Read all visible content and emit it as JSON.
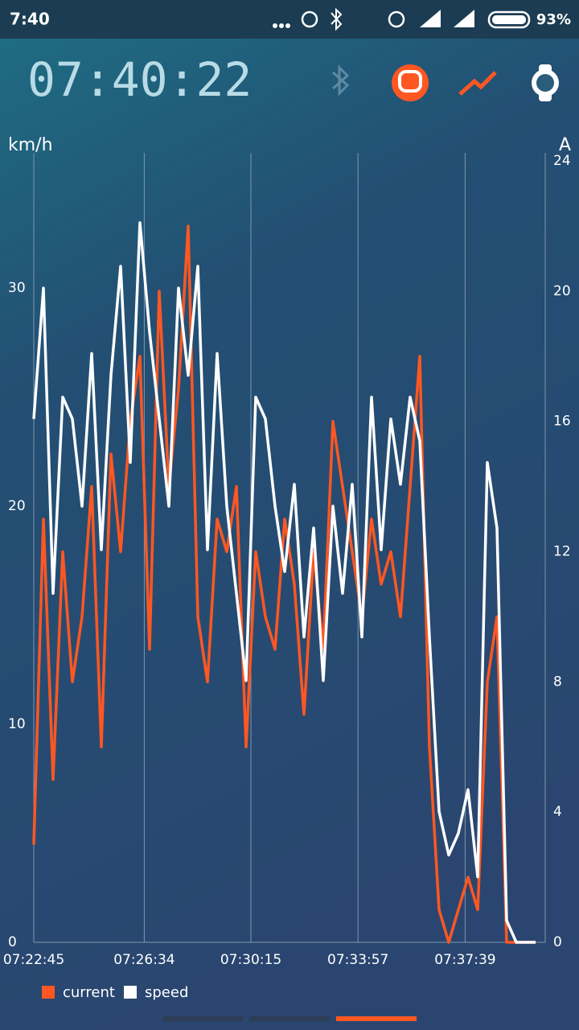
{
  "status_bar": {
    "time": "7:40",
    "battery": "93%"
  },
  "header": {
    "clock": "07:40:22"
  },
  "chart_data": {
    "type": "line",
    "y_label": "km/h",
    "y2_label": "A",
    "x": [
      "07:22:45",
      "07:23:05",
      "07:23:25",
      "07:23:45",
      "07:24:05",
      "07:24:25",
      "07:24:45",
      "07:25:05",
      "07:25:25",
      "07:25:45",
      "07:26:05",
      "07:26:25",
      "07:26:45",
      "07:27:05",
      "07:27:25",
      "07:27:45",
      "07:28:05",
      "07:28:25",
      "07:28:45",
      "07:29:05",
      "07:29:25",
      "07:29:45",
      "07:30:05",
      "07:30:25",
      "07:30:45",
      "07:31:05",
      "07:31:25",
      "07:31:45",
      "07:32:05",
      "07:32:25",
      "07:32:45",
      "07:33:05",
      "07:33:25",
      "07:33:45",
      "07:34:05",
      "07:34:25",
      "07:34:45",
      "07:35:05",
      "07:35:25",
      "07:35:45",
      "07:36:05",
      "07:36:25",
      "07:36:45",
      "07:37:05",
      "07:37:25",
      "07:37:45",
      "07:38:05",
      "07:38:25",
      "07:38:45",
      "07:39:05",
      "07:39:25",
      "07:39:45",
      "07:40:05"
    ],
    "xlim": [
      "07:22:45",
      "07:40:25"
    ],
    "xticks": [
      "07:22:45",
      "07:26:34",
      "07:30:15",
      "07:33:57",
      "07:37:39"
    ],
    "ylim": [
      0,
      36.2
    ],
    "yticks": [
      0,
      10,
      20,
      30
    ],
    "y2lim": [
      0,
      24.25
    ],
    "y2ticks": [
      0,
      4,
      8,
      12,
      16,
      20,
      24
    ],
    "grid": true,
    "series": [
      {
        "name": "current",
        "color": "#ff5722",
        "axis": "y2",
        "values": [
          3,
          13,
          5,
          12,
          8,
          10,
          14,
          6,
          15,
          12,
          16,
          18,
          9,
          20,
          14,
          17,
          22,
          10,
          8,
          13,
          12,
          14,
          6,
          12,
          10,
          9,
          13,
          11,
          7,
          12,
          9,
          16,
          14,
          12,
          10,
          13,
          11,
          12,
          10,
          14,
          18,
          6,
          1,
          0,
          1,
          2,
          1,
          8,
          10,
          0,
          0,
          0,
          0
        ]
      },
      {
        "name": "speed",
        "color": "#ffffff",
        "values": [
          24,
          30,
          16,
          25,
          24,
          20,
          27,
          18,
          26,
          31,
          22,
          33,
          28,
          24,
          20,
          30,
          26,
          31,
          18,
          27,
          20,
          16,
          12,
          25,
          24,
          20,
          17,
          21,
          14,
          19,
          12,
          20,
          16,
          21,
          14,
          25,
          18,
          24,
          21,
          25,
          23,
          14,
          6,
          4,
          5,
          7,
          3,
          22,
          19,
          1,
          0,
          0,
          0
        ]
      }
    ]
  }
}
